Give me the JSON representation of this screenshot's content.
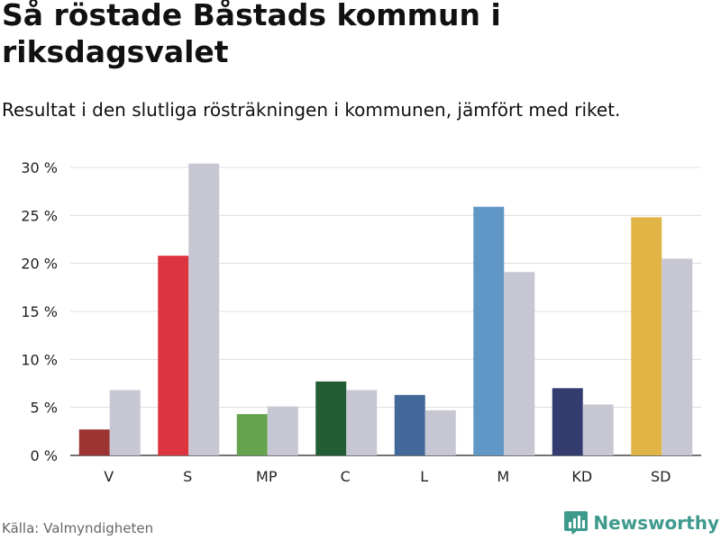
{
  "header": {
    "title": "Så röstade Båstads kommun i riksdagsvalet",
    "subtitle": "Resultat i den slutliga rösträkningen i kommunen, jämfört med riket."
  },
  "footer": {
    "source": "Källa: Valmyndigheten",
    "brand": "Newsworthy",
    "brand_icon": "bar-chart-logo-icon",
    "brand_color": "#3f9a8e"
  },
  "chart_data": {
    "type": "bar",
    "title": "Så röstade Båstads kommun i riksdagsvalet",
    "subtitle": "Resultat i den slutliga rösträkningen i kommunen, jämfört med riket.",
    "xlabel": "",
    "ylabel": "",
    "ylim": [
      0,
      30
    ],
    "yticks": [
      0,
      5,
      10,
      15,
      20,
      25,
      30
    ],
    "ytick_labels": [
      "0 %",
      "5 %",
      "10 %",
      "15 %",
      "20 %",
      "25 %",
      "30 %"
    ],
    "grid": true,
    "legend": "none",
    "categories": [
      "V",
      "S",
      "MP",
      "C",
      "L",
      "M",
      "KD",
      "SD"
    ],
    "series": [
      {
        "name": "Båstads kommun",
        "values": [
          2.7,
          20.8,
          4.3,
          7.7,
          6.3,
          25.9,
          7.0,
          24.8
        ],
        "colors": [
          "#9b3432",
          "#dd3540",
          "#65a34f",
          "#235d33",
          "#43699a",
          "#6197c6",
          "#323c6f",
          "#e1b446"
        ]
      },
      {
        "name": "Riket",
        "values": [
          6.8,
          30.4,
          5.1,
          6.8,
          4.7,
          19.1,
          5.3,
          20.5
        ],
        "color": "#c7c7d4"
      }
    ]
  }
}
